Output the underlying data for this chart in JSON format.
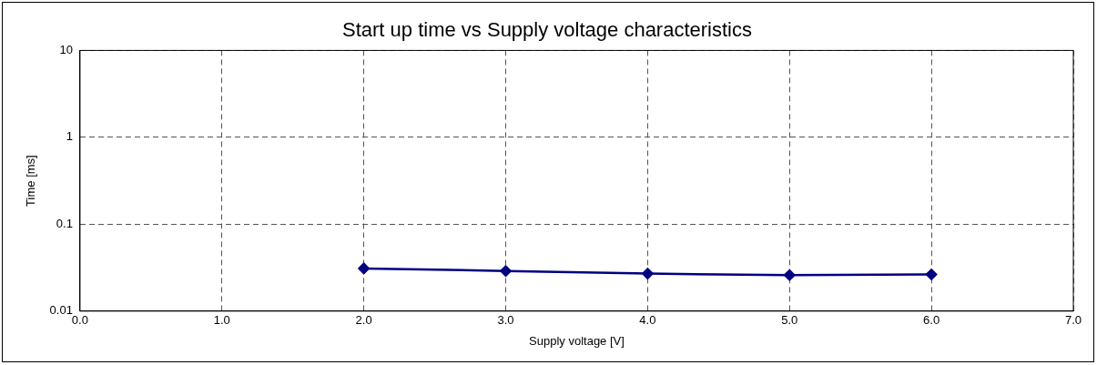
{
  "chart_data": {
    "type": "line",
    "title": "Start up time vs Supply voltage characteristics",
    "xlabel": "Supply voltage [V]",
    "ylabel": "Time [ms]",
    "x": [
      2.0,
      3.0,
      4.0,
      5.0,
      6.0
    ],
    "series": [
      {
        "color": "#000080",
        "values": [
          0.031,
          0.029,
          0.027,
          0.026,
          0.0265
        ]
      }
    ],
    "xlim": [
      0,
      7
    ],
    "xticks": [
      {
        "value": 0,
        "label": "0.0"
      },
      {
        "value": 1,
        "label": "1.0"
      },
      {
        "value": 2,
        "label": "2.0"
      },
      {
        "value": 3,
        "label": "3.0"
      },
      {
        "value": 4,
        "label": "4.0"
      },
      {
        "value": 5,
        "label": "5.0"
      },
      {
        "value": 6,
        "label": "6.0"
      },
      {
        "value": 7,
        "label": "7.0"
      }
    ],
    "ylim": [
      0.01,
      10
    ],
    "yticks": [
      0.01,
      0.1,
      1,
      10
    ],
    "log": "y",
    "grid": true,
    "legend": false,
    "marker": "diamond",
    "line_style": "solid"
  }
}
